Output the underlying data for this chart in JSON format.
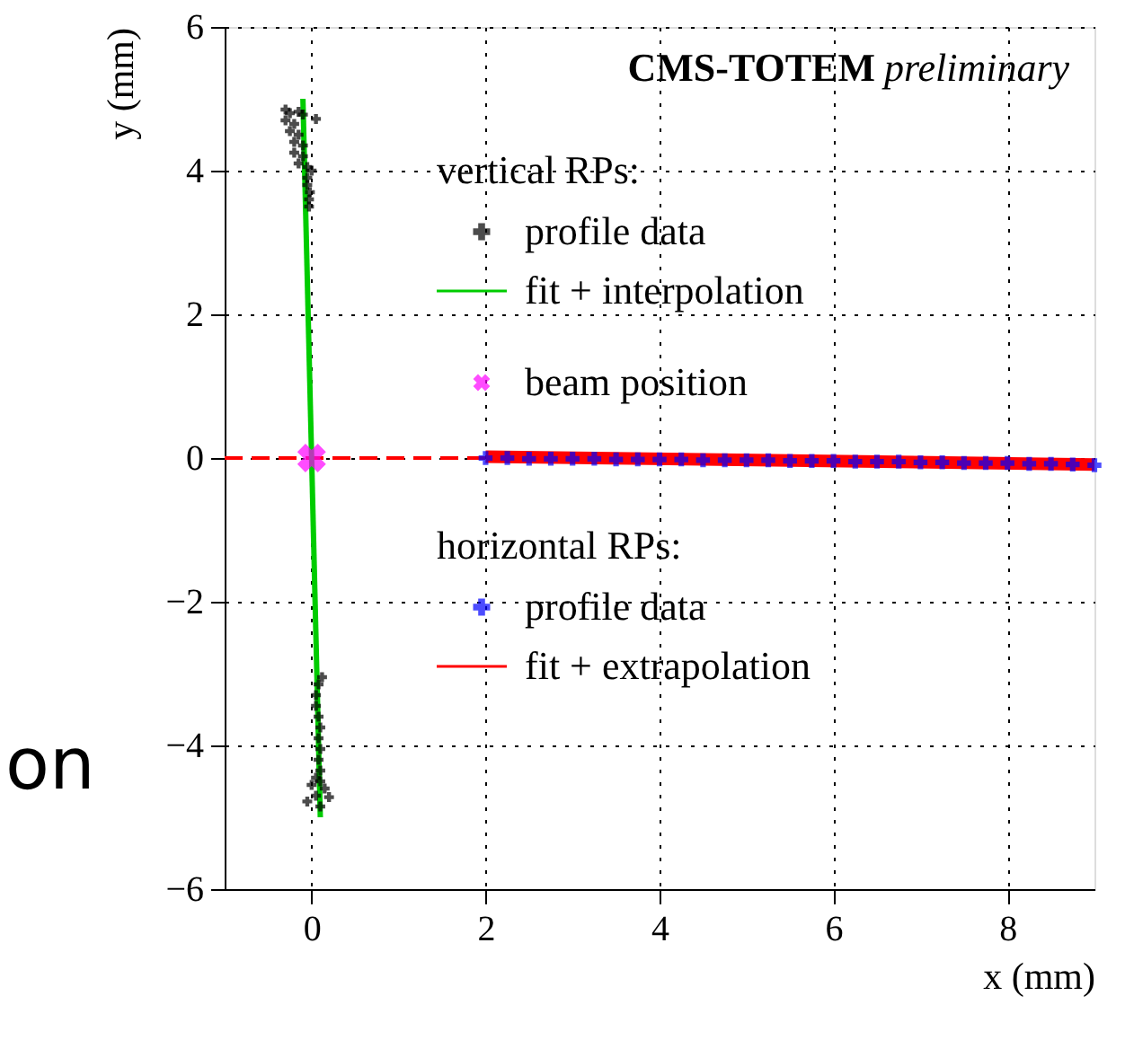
{
  "chart_data": {
    "type": "scatter",
    "title": "CMS-TOTEM",
    "subtitle": "preliminary",
    "xlabel": "x   (mm)",
    "ylabel": "y   (mm)",
    "xlim": [
      -1,
      9
    ],
    "xticks": [
      0,
      2,
      4,
      6,
      8
    ],
    "ylim": [
      -6,
      6
    ],
    "yticks": [
      -6,
      -4,
      -2,
      0,
      2,
      4,
      6
    ],
    "grid": true,
    "legend": "top",
    "annotations": [
      "vertical RPs:",
      "horizontal RPs:",
      "on"
    ],
    "series": [
      {
        "name": "fit + extrapolation",
        "type": "line",
        "color": "#ff0000",
        "line_style": "solid",
        "x": [
          2,
          9
        ],
        "values": [
          0.02,
          -0.09
        ]
      },
      {
        "type": "line",
        "color": "#ff0000",
        "line_style": "dashed",
        "x": [
          -1,
          2
        ],
        "values": [
          0.0,
          0.0
        ]
      },
      {
        "name": "fit + interpolation",
        "type": "line",
        "color": "#00cc00",
        "line_style": "solid",
        "x": [
          -0.1,
          0.1
        ],
        "values": [
          5.0,
          -5.0
        ]
      },
      {
        "name": "profile data",
        "marker": "cross",
        "color": "#000000",
        "x": [
          -0.3,
          -0.25,
          -0.15,
          -0.1,
          -0.3,
          -0.2,
          0.05,
          -0.25,
          -0.15,
          -0.2,
          -0.1,
          -0.2,
          -0.1,
          -0.15,
          -0.05,
          0.0,
          -0.05,
          -0.05,
          -0.02,
          -0.03,
          -0.03,
          0.12,
          0.08,
          0.05,
          0.05,
          0.08,
          0.1,
          0.08,
          0.1,
          0.08,
          0.1,
          0.05,
          0.0,
          0.1,
          0.15,
          0.05,
          0.2,
          0.1,
          -0.05
        ],
        "values": [
          4.85,
          4.8,
          4.82,
          4.78,
          4.7,
          4.65,
          4.72,
          4.55,
          4.5,
          4.4,
          4.35,
          4.25,
          4.2,
          4.1,
          4.05,
          4.0,
          3.9,
          3.8,
          3.7,
          3.6,
          3.5,
          -3.05,
          -3.15,
          -3.3,
          -3.45,
          -3.6,
          -3.75,
          -3.9,
          -4.05,
          -4.2,
          -4.35,
          -4.45,
          -4.55,
          -4.5,
          -4.6,
          -4.7,
          -4.72,
          -4.85,
          -4.78
        ]
      },
      {
        "name": "beam position",
        "marker": "cross",
        "color": "#ff00ff",
        "x": [
          0
        ],
        "values": [
          0
        ]
      },
      {
        "name": "profile data",
        "marker": "cross",
        "color": "#0000ff",
        "x": [
          2,
          2.25,
          2.5,
          2.75,
          3,
          3.25,
          3.5,
          3.75,
          4,
          4.25,
          4.5,
          4.75,
          5,
          5.25,
          5.5,
          5.75,
          6,
          6.25,
          6.5,
          6.75,
          7,
          7.25,
          7.5,
          7.75,
          8,
          8.25,
          8.5,
          8.75,
          9
        ],
        "values": [
          0.0,
          0.0,
          -0.01,
          -0.01,
          -0.01,
          -0.01,
          -0.02,
          -0.02,
          -0.02,
          -0.02,
          -0.03,
          -0.03,
          -0.03,
          -0.03,
          -0.04,
          -0.04,
          -0.04,
          -0.05,
          -0.05,
          -0.05,
          -0.06,
          -0.06,
          -0.07,
          -0.07,
          -0.07,
          -0.08,
          -0.08,
          -0.09,
          -0.1
        ]
      }
    ]
  }
}
